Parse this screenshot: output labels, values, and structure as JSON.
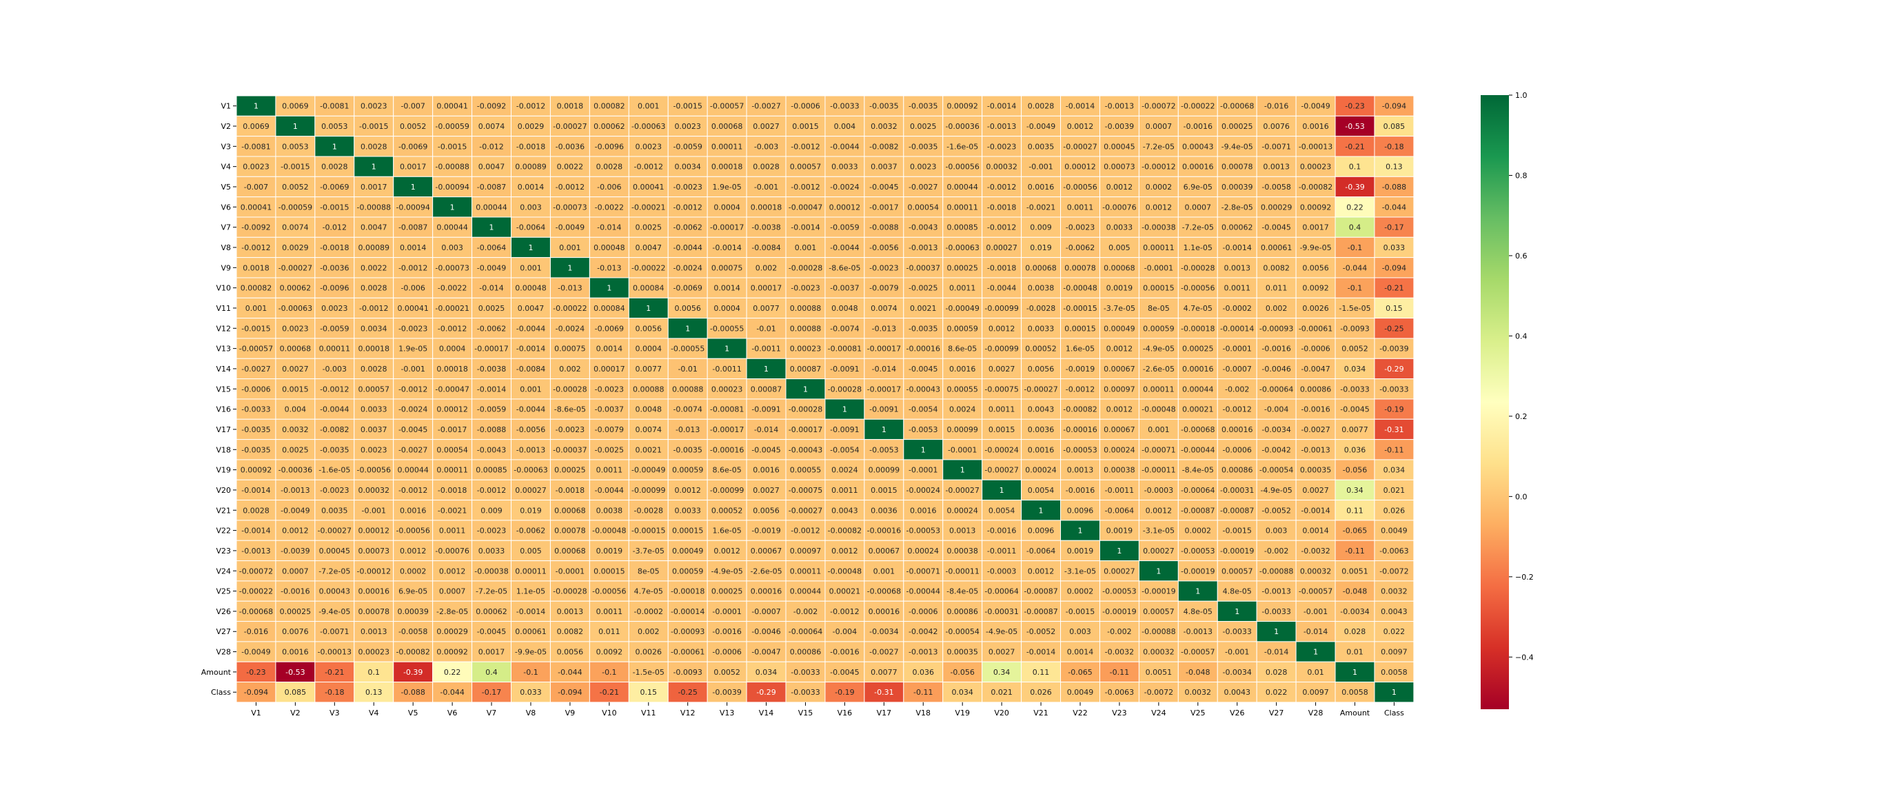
{
  "chart_data": {
    "type": "heatmap",
    "labels": [
      "V1",
      "V2",
      "V3",
      "V4",
      "V5",
      "V6",
      "V7",
      "V8",
      "V9",
      "V10",
      "V11",
      "V12",
      "V13",
      "V14",
      "V15",
      "V16",
      "V17",
      "V18",
      "V19",
      "V20",
      "V21",
      "V22",
      "V23",
      "V24",
      "V25",
      "V26",
      "V27",
      "V28",
      "Amount",
      "Class"
    ],
    "matrix": [
      [
        "1",
        "0.0069",
        "-0.0081",
        "0.0023",
        "-0.007",
        "0.00041",
        "-0.0092",
        "-0.0012",
        "0.0018",
        "0.00082",
        "0.001",
        "-0.0015",
        "-0.00057",
        "-0.0027",
        "-0.0006",
        "-0.0033",
        "-0.0035",
        "-0.0035",
        "0.00092",
        "-0.0014",
        "0.0028",
        "-0.0014",
        "-0.0013",
        "-0.00072",
        "-0.00022",
        "-0.00068",
        "-0.016",
        "-0.0049",
        "-0.23",
        "-0.094"
      ],
      [
        "0.0069",
        "1",
        "0.0053",
        "-0.0015",
        "0.0052",
        "-0.00059",
        "0.0074",
        "0.0029",
        "-0.00027",
        "0.00062",
        "-0.00063",
        "0.0023",
        "0.00068",
        "0.0027",
        "0.0015",
        "0.004",
        "0.0032",
        "0.0025",
        "-0.00036",
        "-0.0013",
        "-0.0049",
        "0.0012",
        "-0.0039",
        "0.0007",
        "-0.0016",
        "0.00025",
        "0.0076",
        "0.0016",
        "-0.53",
        "0.085"
      ],
      [
        "-0.0081",
        "0.0053",
        "1",
        "0.0028",
        "-0.0069",
        "-0.0015",
        "-0.012",
        "-0.0018",
        "-0.0036",
        "-0.0096",
        "0.0023",
        "-0.0059",
        "0.00011",
        "-0.003",
        "-0.0012",
        "-0.0044",
        "-0.0082",
        "-0.0035",
        "-1.6e-05",
        "-0.0023",
        "0.0035",
        "-0.00027",
        "0.00045",
        "-7.2e-05",
        "0.00043",
        "-9.4e-05",
        "-0.0071",
        "-0.00013",
        "-0.21",
        "-0.18"
      ],
      [
        "0.0023",
        "-0.0015",
        "0.0028",
        "1",
        "0.0017",
        "-0.00088",
        "0.0047",
        "0.00089",
        "0.0022",
        "0.0028",
        "-0.0012",
        "0.0034",
        "0.00018",
        "0.0028",
        "0.00057",
        "0.0033",
        "0.0037",
        "0.0023",
        "-0.00056",
        "0.00032",
        "-0.001",
        "0.00012",
        "0.00073",
        "-0.00012",
        "0.00016",
        "0.00078",
        "0.0013",
        "0.00023",
        "0.1",
        "0.13"
      ],
      [
        "-0.007",
        "0.0052",
        "-0.0069",
        "0.0017",
        "1",
        "-0.00094",
        "-0.0087",
        "0.0014",
        "-0.0012",
        "-0.006",
        "0.00041",
        "-0.0023",
        "1.9e-05",
        "-0.001",
        "-0.0012",
        "-0.0024",
        "-0.0045",
        "-0.0027",
        "0.00044",
        "-0.0012",
        "0.0016",
        "-0.00056",
        "0.0012",
        "0.0002",
        "6.9e-05",
        "0.00039",
        "-0.0058",
        "-0.00082",
        "-0.39",
        "-0.088"
      ],
      [
        "0.00041",
        "-0.00059",
        "-0.0015",
        "-0.00088",
        "-0.00094",
        "1",
        "0.00044",
        "0.003",
        "-0.00073",
        "-0.0022",
        "-0.00021",
        "-0.0012",
        "0.0004",
        "0.00018",
        "-0.00047",
        "0.00012",
        "-0.0017",
        "0.00054",
        "0.00011",
        "-0.0018",
        "-0.0021",
        "0.0011",
        "-0.00076",
        "0.0012",
        "0.0007",
        "-2.8e-05",
        "0.00029",
        "0.00092",
        "0.22",
        "-0.044"
      ],
      [
        "-0.0092",
        "0.0074",
        "-0.012",
        "0.0047",
        "-0.0087",
        "0.00044",
        "1",
        "-0.0064",
        "-0.0049",
        "-0.014",
        "0.0025",
        "-0.0062",
        "-0.00017",
        "-0.0038",
        "-0.0014",
        "-0.0059",
        "-0.0088",
        "-0.0043",
        "0.00085",
        "-0.0012",
        "0.009",
        "-0.0023",
        "0.0033",
        "-0.00038",
        "-7.2e-05",
        "0.00062",
        "-0.0045",
        "0.0017",
        "0.4",
        "-0.17"
      ],
      [
        "-0.0012",
        "0.0029",
        "-0.0018",
        "0.00089",
        "0.0014",
        "0.003",
        "-0.0064",
        "1",
        "0.001",
        "0.00048",
        "0.0047",
        "-0.0044",
        "-0.0014",
        "-0.0084",
        "0.001",
        "-0.0044",
        "-0.0056",
        "-0.0013",
        "-0.00063",
        "0.00027",
        "0.019",
        "-0.0062",
        "0.005",
        "0.00011",
        "1.1e-05",
        "-0.0014",
        "0.00061",
        "-9.9e-05",
        "-0.1",
        "0.033"
      ],
      [
        "0.0018",
        "-0.00027",
        "-0.0036",
        "0.0022",
        "-0.0012",
        "-0.00073",
        "-0.0049",
        "0.001",
        "1",
        "-0.013",
        "-0.00022",
        "-0.0024",
        "0.00075",
        "0.002",
        "-0.00028",
        "-8.6e-05",
        "-0.0023",
        "-0.00037",
        "0.00025",
        "-0.0018",
        "0.00068",
        "0.00078",
        "0.00068",
        "-0.0001",
        "-0.00028",
        "0.0013",
        "0.0082",
        "0.0056",
        "-0.044",
        "-0.094"
      ],
      [
        "0.00082",
        "0.00062",
        "-0.0096",
        "0.0028",
        "-0.006",
        "-0.0022",
        "-0.014",
        "0.00048",
        "-0.013",
        "1",
        "0.00084",
        "-0.0069",
        "0.0014",
        "0.00017",
        "-0.0023",
        "-0.0037",
        "-0.0079",
        "-0.0025",
        "0.0011",
        "-0.0044",
        "0.0038",
        "-0.00048",
        "0.0019",
        "0.00015",
        "-0.00056",
        "0.0011",
        "0.011",
        "0.0092",
        "-0.1",
        "-0.21"
      ],
      [
        "0.001",
        "-0.00063",
        "0.0023",
        "-0.0012",
        "0.00041",
        "-0.00021",
        "0.0025",
        "0.0047",
        "-0.00022",
        "0.00084",
        "1",
        "0.0056",
        "0.0004",
        "0.0077",
        "0.00088",
        "0.0048",
        "0.0074",
        "0.0021",
        "-0.00049",
        "-0.00099",
        "-0.0028",
        "-0.00015",
        "-3.7e-05",
        "8e-05",
        "4.7e-05",
        "-0.0002",
        "0.002",
        "0.0026",
        "-1.5e-05",
        "0.15"
      ],
      [
        "-0.0015",
        "0.0023",
        "-0.0059",
        "0.0034",
        "-0.0023",
        "-0.0012",
        "-0.0062",
        "-0.0044",
        "-0.0024",
        "-0.0069",
        "0.0056",
        "1",
        "-0.00055",
        "-0.01",
        "0.00088",
        "-0.0074",
        "-0.013",
        "-0.0035",
        "0.00059",
        "0.0012",
        "0.0033",
        "0.00015",
        "0.00049",
        "0.00059",
        "-0.00018",
        "-0.00014",
        "-0.00093",
        "-0.00061",
        "-0.0093",
        "-0.25"
      ],
      [
        "-0.00057",
        "0.00068",
        "0.00011",
        "0.00018",
        "1.9e-05",
        "0.0004",
        "-0.00017",
        "-0.0014",
        "0.00075",
        "0.0014",
        "0.0004",
        "-0.00055",
        "1",
        "-0.0011",
        "0.00023",
        "-0.00081",
        "-0.00017",
        "-0.00016",
        "8.6e-05",
        "-0.00099",
        "0.00052",
        "1.6e-05",
        "0.0012",
        "-4.9e-05",
        "0.00025",
        "-0.0001",
        "-0.0016",
        "-0.0006",
        "0.0052",
        "-0.0039"
      ],
      [
        "-0.0027",
        "0.0027",
        "-0.003",
        "0.0028",
        "-0.001",
        "0.00018",
        "-0.0038",
        "-0.0084",
        "0.002",
        "0.00017",
        "0.0077",
        "-0.01",
        "-0.0011",
        "1",
        "0.00087",
        "-0.0091",
        "-0.014",
        "-0.0045",
        "0.0016",
        "0.0027",
        "0.0056",
        "-0.0019",
        "0.00067",
        "-2.6e-05",
        "0.00016",
        "-0.0007",
        "-0.0046",
        "-0.0047",
        "0.034",
        "-0.29"
      ],
      [
        "-0.0006",
        "0.0015",
        "-0.0012",
        "0.00057",
        "-0.0012",
        "-0.00047",
        "-0.0014",
        "0.001",
        "-0.00028",
        "-0.0023",
        "0.00088",
        "0.00088",
        "0.00023",
        "0.00087",
        "1",
        "-0.00028",
        "-0.00017",
        "-0.00043",
        "0.00055",
        "-0.00075",
        "-0.00027",
        "-0.0012",
        "0.00097",
        "0.00011",
        "0.00044",
        "-0.002",
        "-0.00064",
        "0.00086",
        "-0.0033",
        "-0.0033"
      ],
      [
        "-0.0033",
        "0.004",
        "-0.0044",
        "0.0033",
        "-0.0024",
        "0.00012",
        "-0.0059",
        "-0.0044",
        "-8.6e-05",
        "-0.0037",
        "0.0048",
        "-0.0074",
        "-0.00081",
        "-0.0091",
        "-0.00028",
        "1",
        "-0.0091",
        "-0.0054",
        "0.0024",
        "0.0011",
        "0.0043",
        "-0.00082",
        "0.0012",
        "-0.00048",
        "0.00021",
        "-0.0012",
        "-0.004",
        "-0.0016",
        "-0.0045",
        "-0.19"
      ],
      [
        "-0.0035",
        "0.0032",
        "-0.0082",
        "0.0037",
        "-0.0045",
        "-0.0017",
        "-0.0088",
        "-0.0056",
        "-0.0023",
        "-0.0079",
        "0.0074",
        "-0.013",
        "-0.00017",
        "-0.014",
        "-0.00017",
        "-0.0091",
        "1",
        "-0.0053",
        "0.00099",
        "0.0015",
        "0.0036",
        "-0.00016",
        "0.00067",
        "0.001",
        "-0.00068",
        "0.00016",
        "-0.0034",
        "-0.0027",
        "0.0077",
        "-0.31"
      ],
      [
        "-0.0035",
        "0.0025",
        "-0.0035",
        "0.0023",
        "-0.0027",
        "0.00054",
        "-0.0043",
        "-0.0013",
        "-0.00037",
        "-0.0025",
        "0.0021",
        "-0.0035",
        "-0.00016",
        "-0.0045",
        "-0.00043",
        "-0.0054",
        "-0.0053",
        "1",
        "-0.0001",
        "-0.00024",
        "0.0016",
        "-0.00053",
        "0.00024",
        "-0.00071",
        "-0.00044",
        "-0.0006",
        "-0.0042",
        "-0.0013",
        "0.036",
        "-0.11"
      ],
      [
        "0.00092",
        "-0.00036",
        "-1.6e-05",
        "-0.00056",
        "0.00044",
        "0.00011",
        "0.00085",
        "-0.00063",
        "0.00025",
        "0.0011",
        "-0.00049",
        "0.00059",
        "8.6e-05",
        "0.0016",
        "0.00055",
        "0.0024",
        "0.00099",
        "-0.0001",
        "1",
        "-0.00027",
        "0.00024",
        "0.0013",
        "0.00038",
        "-0.00011",
        "-8.4e-05",
        "0.00086",
        "-0.00054",
        "0.00035",
        "-0.056",
        "0.034"
      ],
      [
        "-0.0014",
        "-0.0013",
        "-0.0023",
        "0.00032",
        "-0.0012",
        "-0.0018",
        "-0.0012",
        "0.00027",
        "-0.0018",
        "-0.0044",
        "-0.00099",
        "0.0012",
        "-0.00099",
        "0.0027",
        "-0.00075",
        "0.0011",
        "0.0015",
        "-0.00024",
        "-0.00027",
        "1",
        "0.0054",
        "-0.0016",
        "-0.0011",
        "-0.0003",
        "-0.00064",
        "-0.00031",
        "-4.9e-05",
        "0.0027",
        "0.34",
        "0.021"
      ],
      [
        "0.0028",
        "-0.0049",
        "0.0035",
        "-0.001",
        "0.0016",
        "-0.0021",
        "0.009",
        "0.019",
        "0.00068",
        "0.0038",
        "-0.0028",
        "0.0033",
        "0.00052",
        "0.0056",
        "-0.00027",
        "0.0043",
        "0.0036",
        "0.0016",
        "0.00024",
        "0.0054",
        "1",
        "0.0096",
        "-0.0064",
        "0.0012",
        "-0.00087",
        "-0.00087",
        "-0.0052",
        "-0.0014",
        "0.11",
        "0.026"
      ],
      [
        "-0.0014",
        "0.0012",
        "-0.00027",
        "0.00012",
        "-0.00056",
        "0.0011",
        "-0.0023",
        "-0.0062",
        "0.00078",
        "-0.00048",
        "-0.00015",
        "0.00015",
        "1.6e-05",
        "-0.0019",
        "-0.0012",
        "-0.00082",
        "-0.00016",
        "-0.00053",
        "0.0013",
        "-0.0016",
        "0.0096",
        "1",
        "0.0019",
        "-3.1e-05",
        "0.0002",
        "-0.0015",
        "0.003",
        "0.0014",
        "-0.065",
        "0.0049"
      ],
      [
        "-0.0013",
        "-0.0039",
        "0.00045",
        "0.00073",
        "0.0012",
        "-0.00076",
        "0.0033",
        "0.005",
        "0.00068",
        "0.0019",
        "-3.7e-05",
        "0.00049",
        "0.0012",
        "0.00067",
        "0.00097",
        "0.0012",
        "0.00067",
        "0.00024",
        "0.00038",
        "-0.0011",
        "-0.0064",
        "0.0019",
        "1",
        "0.00027",
        "-0.00053",
        "-0.00019",
        "-0.002",
        "-0.0032",
        "-0.11",
        "-0.0063"
      ],
      [
        "-0.00072",
        "0.0007",
        "-7.2e-05",
        "-0.00012",
        "0.0002",
        "0.0012",
        "-0.00038",
        "0.00011",
        "-0.0001",
        "0.00015",
        "8e-05",
        "0.00059",
        "-4.9e-05",
        "-2.6e-05",
        "0.00011",
        "-0.00048",
        "0.001",
        "-0.00071",
        "-0.00011",
        "-0.0003",
        "0.0012",
        "-3.1e-05",
        "0.00027",
        "1",
        "-0.00019",
        "0.00057",
        "-0.00088",
        "0.00032",
        "0.0051",
        "-0.0072"
      ],
      [
        "-0.00022",
        "-0.0016",
        "0.00043",
        "0.00016",
        "6.9e-05",
        "0.0007",
        "-7.2e-05",
        "1.1e-05",
        "-0.00028",
        "-0.00056",
        "4.7e-05",
        "-0.00018",
        "0.00025",
        "0.00016",
        "0.00044",
        "0.00021",
        "-0.00068",
        "-0.00044",
        "-8.4e-05",
        "-0.00064",
        "-0.00087",
        "0.0002",
        "-0.00053",
        "-0.00019",
        "1",
        "4.8e-05",
        "-0.0013",
        "-0.00057",
        "-0.048",
        "0.0032"
      ],
      [
        "-0.00068",
        "0.00025",
        "-9.4e-05",
        "0.00078",
        "0.00039",
        "-2.8e-05",
        "0.00062",
        "-0.0014",
        "0.0013",
        "0.0011",
        "-0.0002",
        "-0.00014",
        "-0.0001",
        "-0.0007",
        "-0.002",
        "-0.0012",
        "0.00016",
        "-0.0006",
        "0.00086",
        "-0.00031",
        "-0.00087",
        "-0.0015",
        "-0.00019",
        "0.00057",
        "4.8e-05",
        "1",
        "-0.0033",
        "-0.001",
        "-0.0034",
        "0.0043"
      ],
      [
        "-0.016",
        "0.0076",
        "-0.0071",
        "0.0013",
        "-0.0058",
        "0.00029",
        "-0.0045",
        "0.00061",
        "0.0082",
        "0.011",
        "0.002",
        "-0.00093",
        "-0.0016",
        "-0.0046",
        "-0.00064",
        "-0.004",
        "-0.0034",
        "-0.0042",
        "-0.00054",
        "-4.9e-05",
        "-0.0052",
        "0.003",
        "-0.002",
        "-0.00088",
        "-0.0013",
        "-0.0033",
        "1",
        "-0.014",
        "0.028",
        "0.022"
      ],
      [
        "-0.0049",
        "0.0016",
        "-0.00013",
        "0.00023",
        "-0.00082",
        "0.00092",
        "0.0017",
        "-9.9e-05",
        "0.0056",
        "0.0092",
        "0.0026",
        "-0.00061",
        "-0.0006",
        "-0.0047",
        "0.00086",
        "-0.0016",
        "-0.0027",
        "-0.0013",
        "0.00035",
        "0.0027",
        "-0.0014",
        "0.0014",
        "-0.0032",
        "0.00032",
        "-0.00057",
        "-0.001",
        "-0.014",
        "1",
        "0.01",
        "0.0097"
      ],
      [
        "-0.23",
        "-0.53",
        "-0.21",
        "0.1",
        "-0.39",
        "0.22",
        "0.4",
        "-0.1",
        "-0.044",
        "-0.1",
        "-1.5e-05",
        "-0.0093",
        "0.0052",
        "0.034",
        "-0.0033",
        "-0.0045",
        "0.0077",
        "0.036",
        "-0.056",
        "0.34",
        "0.11",
        "-0.065",
        "-0.11",
        "0.0051",
        "-0.048",
        "-0.0034",
        "0.028",
        "0.01",
        "1",
        "0.0058"
      ],
      [
        "-0.094",
        "0.085",
        "-0.18",
        "0.13",
        "-0.088",
        "-0.044",
        "-0.17",
        "0.033",
        "-0.094",
        "-0.21",
        "0.15",
        "-0.25",
        "-0.0039",
        "-0.29",
        "-0.0033",
        "-0.19",
        "-0.31",
        "-0.11",
        "0.034",
        "0.021",
        "0.026",
        "0.0049",
        "-0.0063",
        "-0.0072",
        "0.0032",
        "0.0043",
        "0.022",
        "0.0097",
        "0.0058",
        "1"
      ]
    ],
    "colorbar": {
      "min": -0.53,
      "max": 1.0,
      "ticks": [
        1.0,
        0.8,
        0.6,
        0.4,
        0.2,
        0.0,
        -0.2,
        -0.4
      ],
      "tick_labels": [
        "1.0",
        "0.8",
        "0.6",
        "0.4",
        "0.2",
        "0.0",
        "−0.2",
        "−0.4"
      ]
    },
    "colormap": [
      "#a50026",
      "#d73027",
      "#f46d43",
      "#fdae61",
      "#fee08b",
      "#ffffbf",
      "#d9ef8b",
      "#a6d96a",
      "#66bd63",
      "#1a9850",
      "#006837"
    ],
    "grid_line_color": "#ffffff",
    "title": "",
    "xlabel": "",
    "ylabel": ""
  }
}
